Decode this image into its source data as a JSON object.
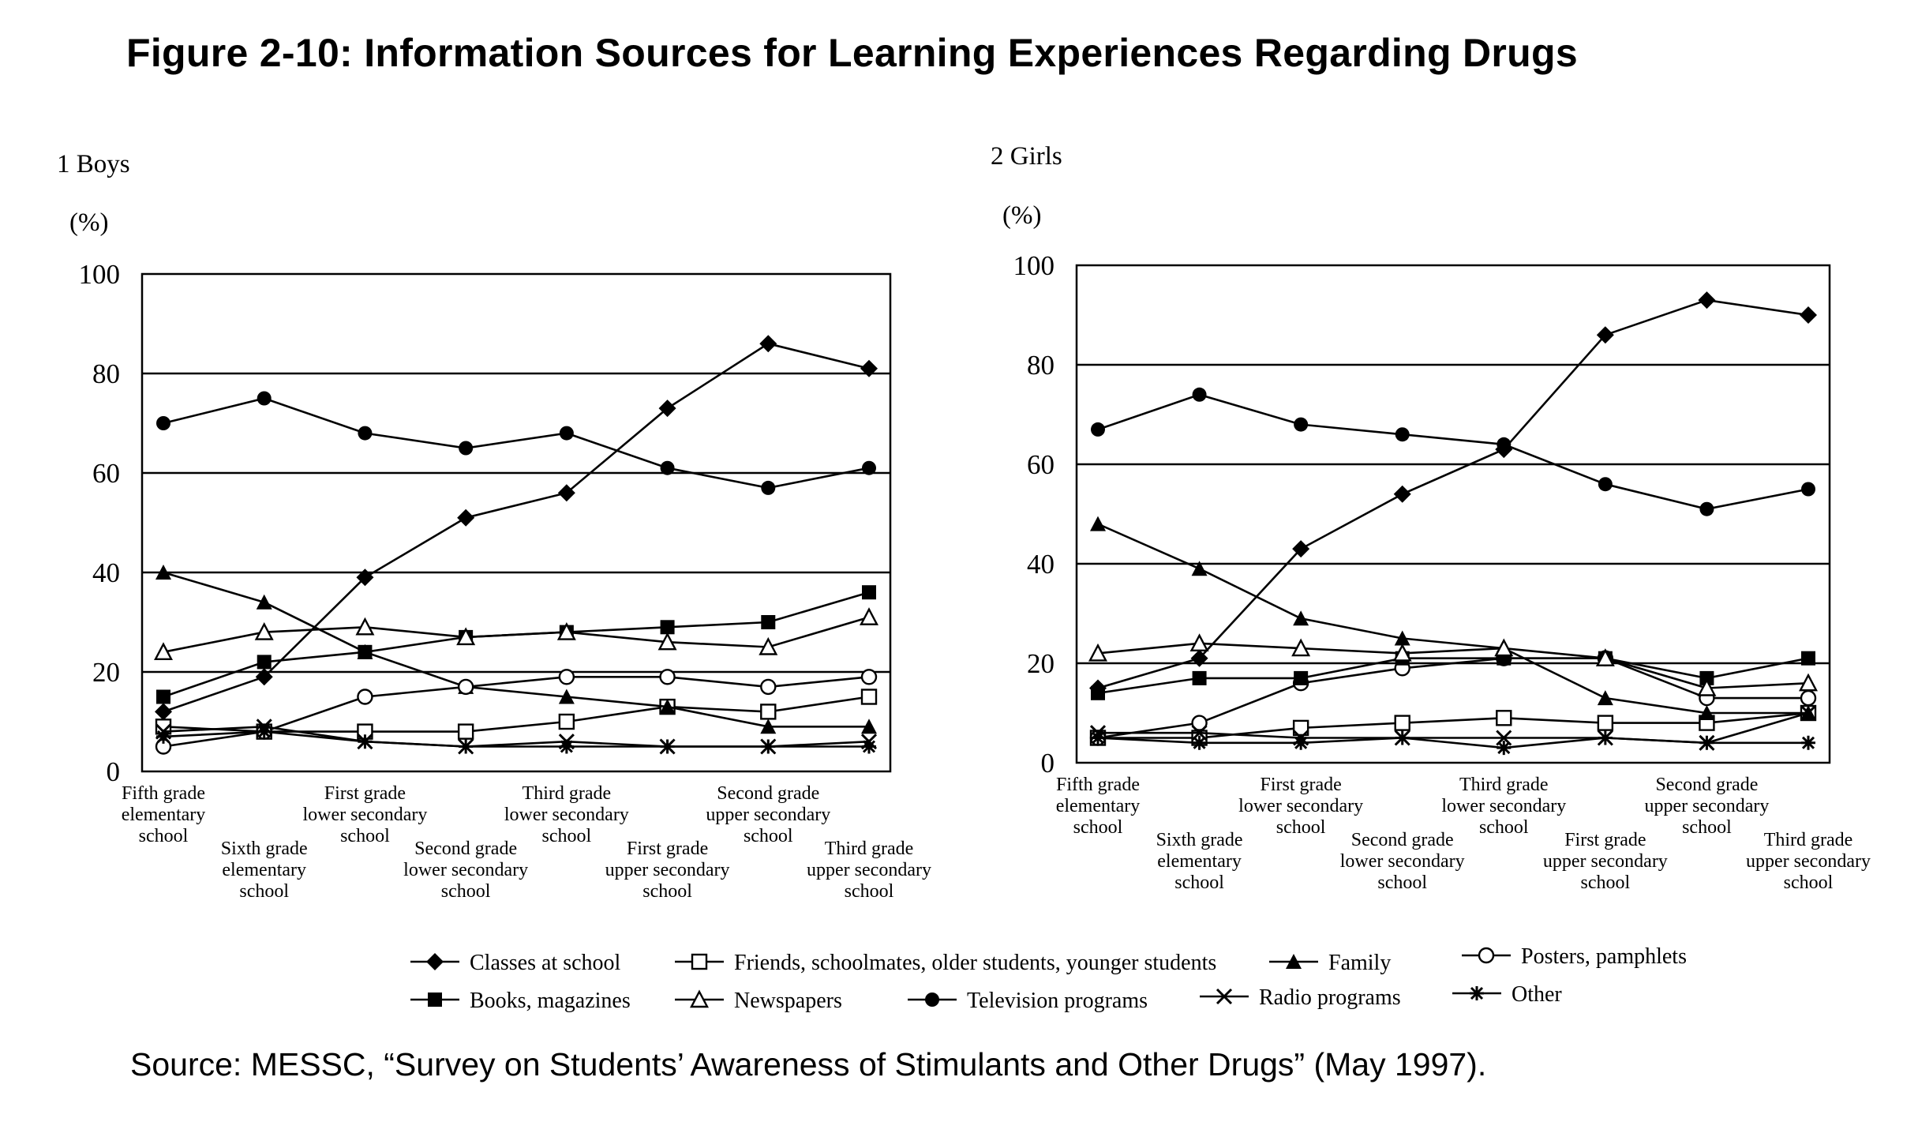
{
  "title": "Figure 2-10: Information Sources for Learning Experiences Regarding Drugs",
  "source": "Source: MESSC, “Survey on Students’ Awareness of Stimulants and Other Drugs” (May 1997).",
  "legend": [
    {
      "label": "Classes at school",
      "marker": "diamond-filled"
    },
    {
      "label": "Friends, schoolmates, older students, younger students",
      "marker": "square-open"
    },
    {
      "label": "Family",
      "marker": "triangle-filled"
    },
    {
      "label": "Posters, pamphlets",
      "marker": "circle-open"
    },
    {
      "label": "Books, magazines",
      "marker": "square-filled"
    },
    {
      "label": "Newspapers",
      "marker": "triangle-open"
    },
    {
      "label": "Television programs",
      "marker": "circle-filled"
    },
    {
      "label": "Radio programs",
      "marker": "x"
    },
    {
      "label": "Other",
      "marker": "star"
    }
  ],
  "chart_data": [
    {
      "type": "line",
      "title": "1 Boys",
      "ylabel": "(%)",
      "ylim": [
        0,
        100
      ],
      "yticks": [
        "0",
        "20",
        "40",
        "60",
        "80",
        "100"
      ],
      "grid": "horizontal",
      "categories": [
        [
          "Fifth grade",
          "elementary",
          "school"
        ],
        [
          "Sixth grade",
          "elementary",
          "school"
        ],
        [
          "First grade",
          "lower secondary",
          "school"
        ],
        [
          "Second grade",
          "lower secondary",
          "school"
        ],
        [
          "Third grade",
          "lower secondary",
          "school"
        ],
        [
          "First grade",
          "upper secondary",
          "school"
        ],
        [
          "Second grade",
          "upper secondary",
          "school"
        ],
        [
          "Third grade",
          "upper secondary",
          "school"
        ]
      ],
      "series": [
        {
          "name": "Classes at school",
          "values": [
            12,
            19,
            39,
            51,
            56,
            73,
            86,
            81
          ]
        },
        {
          "name": "Friends, schoolmates, older students, younger students",
          "values": [
            9,
            8,
            8,
            8,
            10,
            13,
            12,
            15
          ]
        },
        {
          "name": "Family",
          "values": [
            40,
            34,
            24,
            17,
            15,
            13,
            9,
            9
          ]
        },
        {
          "name": "Posters, pamphlets",
          "values": [
            5,
            8,
            15,
            17,
            19,
            19,
            17,
            19
          ]
        },
        {
          "name": "Books, magazines",
          "values": [
            15,
            22,
            24,
            27,
            28,
            29,
            30,
            36
          ]
        },
        {
          "name": "Newspapers",
          "values": [
            24,
            28,
            29,
            27,
            28,
            26,
            25,
            31
          ]
        },
        {
          "name": "Television programs",
          "values": [
            70,
            75,
            68,
            65,
            68,
            61,
            57,
            61
          ]
        },
        {
          "name": "Radio programs",
          "values": [
            8,
            9,
            6,
            5,
            6,
            5,
            5,
            6
          ]
        },
        {
          "name": "Other",
          "values": [
            7,
            8,
            6,
            5,
            5,
            5,
            5,
            5
          ]
        }
      ]
    },
    {
      "type": "line",
      "title": "2 Girls",
      "ylabel": "(%)",
      "ylim": [
        0,
        100
      ],
      "yticks": [
        "0",
        "20",
        "40",
        "60",
        "80",
        "100"
      ],
      "grid": "horizontal",
      "categories": [
        [
          "Fifth grade",
          "elementary",
          "school"
        ],
        [
          "Sixth grade",
          "elementary",
          "school"
        ],
        [
          "First grade",
          "lower secondary",
          "school"
        ],
        [
          "Second grade",
          "lower secondary",
          "school"
        ],
        [
          "Third grade",
          "lower secondary",
          "school"
        ],
        [
          "First grade",
          "upper secondary",
          "school"
        ],
        [
          "Second grade",
          "upper secondary",
          "school"
        ],
        [
          "Third grade",
          "upper secondary",
          "school"
        ]
      ],
      "series": [
        {
          "name": "Classes at school",
          "values": [
            15,
            21,
            43,
            54,
            63,
            86,
            93,
            90
          ]
        },
        {
          "name": "Friends, schoolmates, older students, younger students",
          "values": [
            5,
            5,
            7,
            8,
            9,
            8,
            8,
            10
          ]
        },
        {
          "name": "Family",
          "values": [
            48,
            39,
            29,
            25,
            23,
            13,
            10,
            10
          ]
        },
        {
          "name": "Posters, pamphlets",
          "values": [
            5,
            8,
            16,
            19,
            21,
            21,
            13,
            13
          ]
        },
        {
          "name": "Books, magazines",
          "values": [
            14,
            17,
            17,
            21,
            21,
            21,
            17,
            21
          ]
        },
        {
          "name": "Newspapers",
          "values": [
            22,
            24,
            23,
            22,
            23,
            21,
            15,
            16
          ]
        },
        {
          "name": "Television programs",
          "values": [
            67,
            74,
            68,
            66,
            64,
            56,
            51,
            55
          ]
        },
        {
          "name": "Radio programs",
          "values": [
            6,
            6,
            5,
            5,
            5,
            5,
            4,
            10
          ]
        },
        {
          "name": "Other",
          "values": [
            5,
            4,
            4,
            5,
            3,
            5,
            4,
            4
          ]
        }
      ]
    }
  ]
}
